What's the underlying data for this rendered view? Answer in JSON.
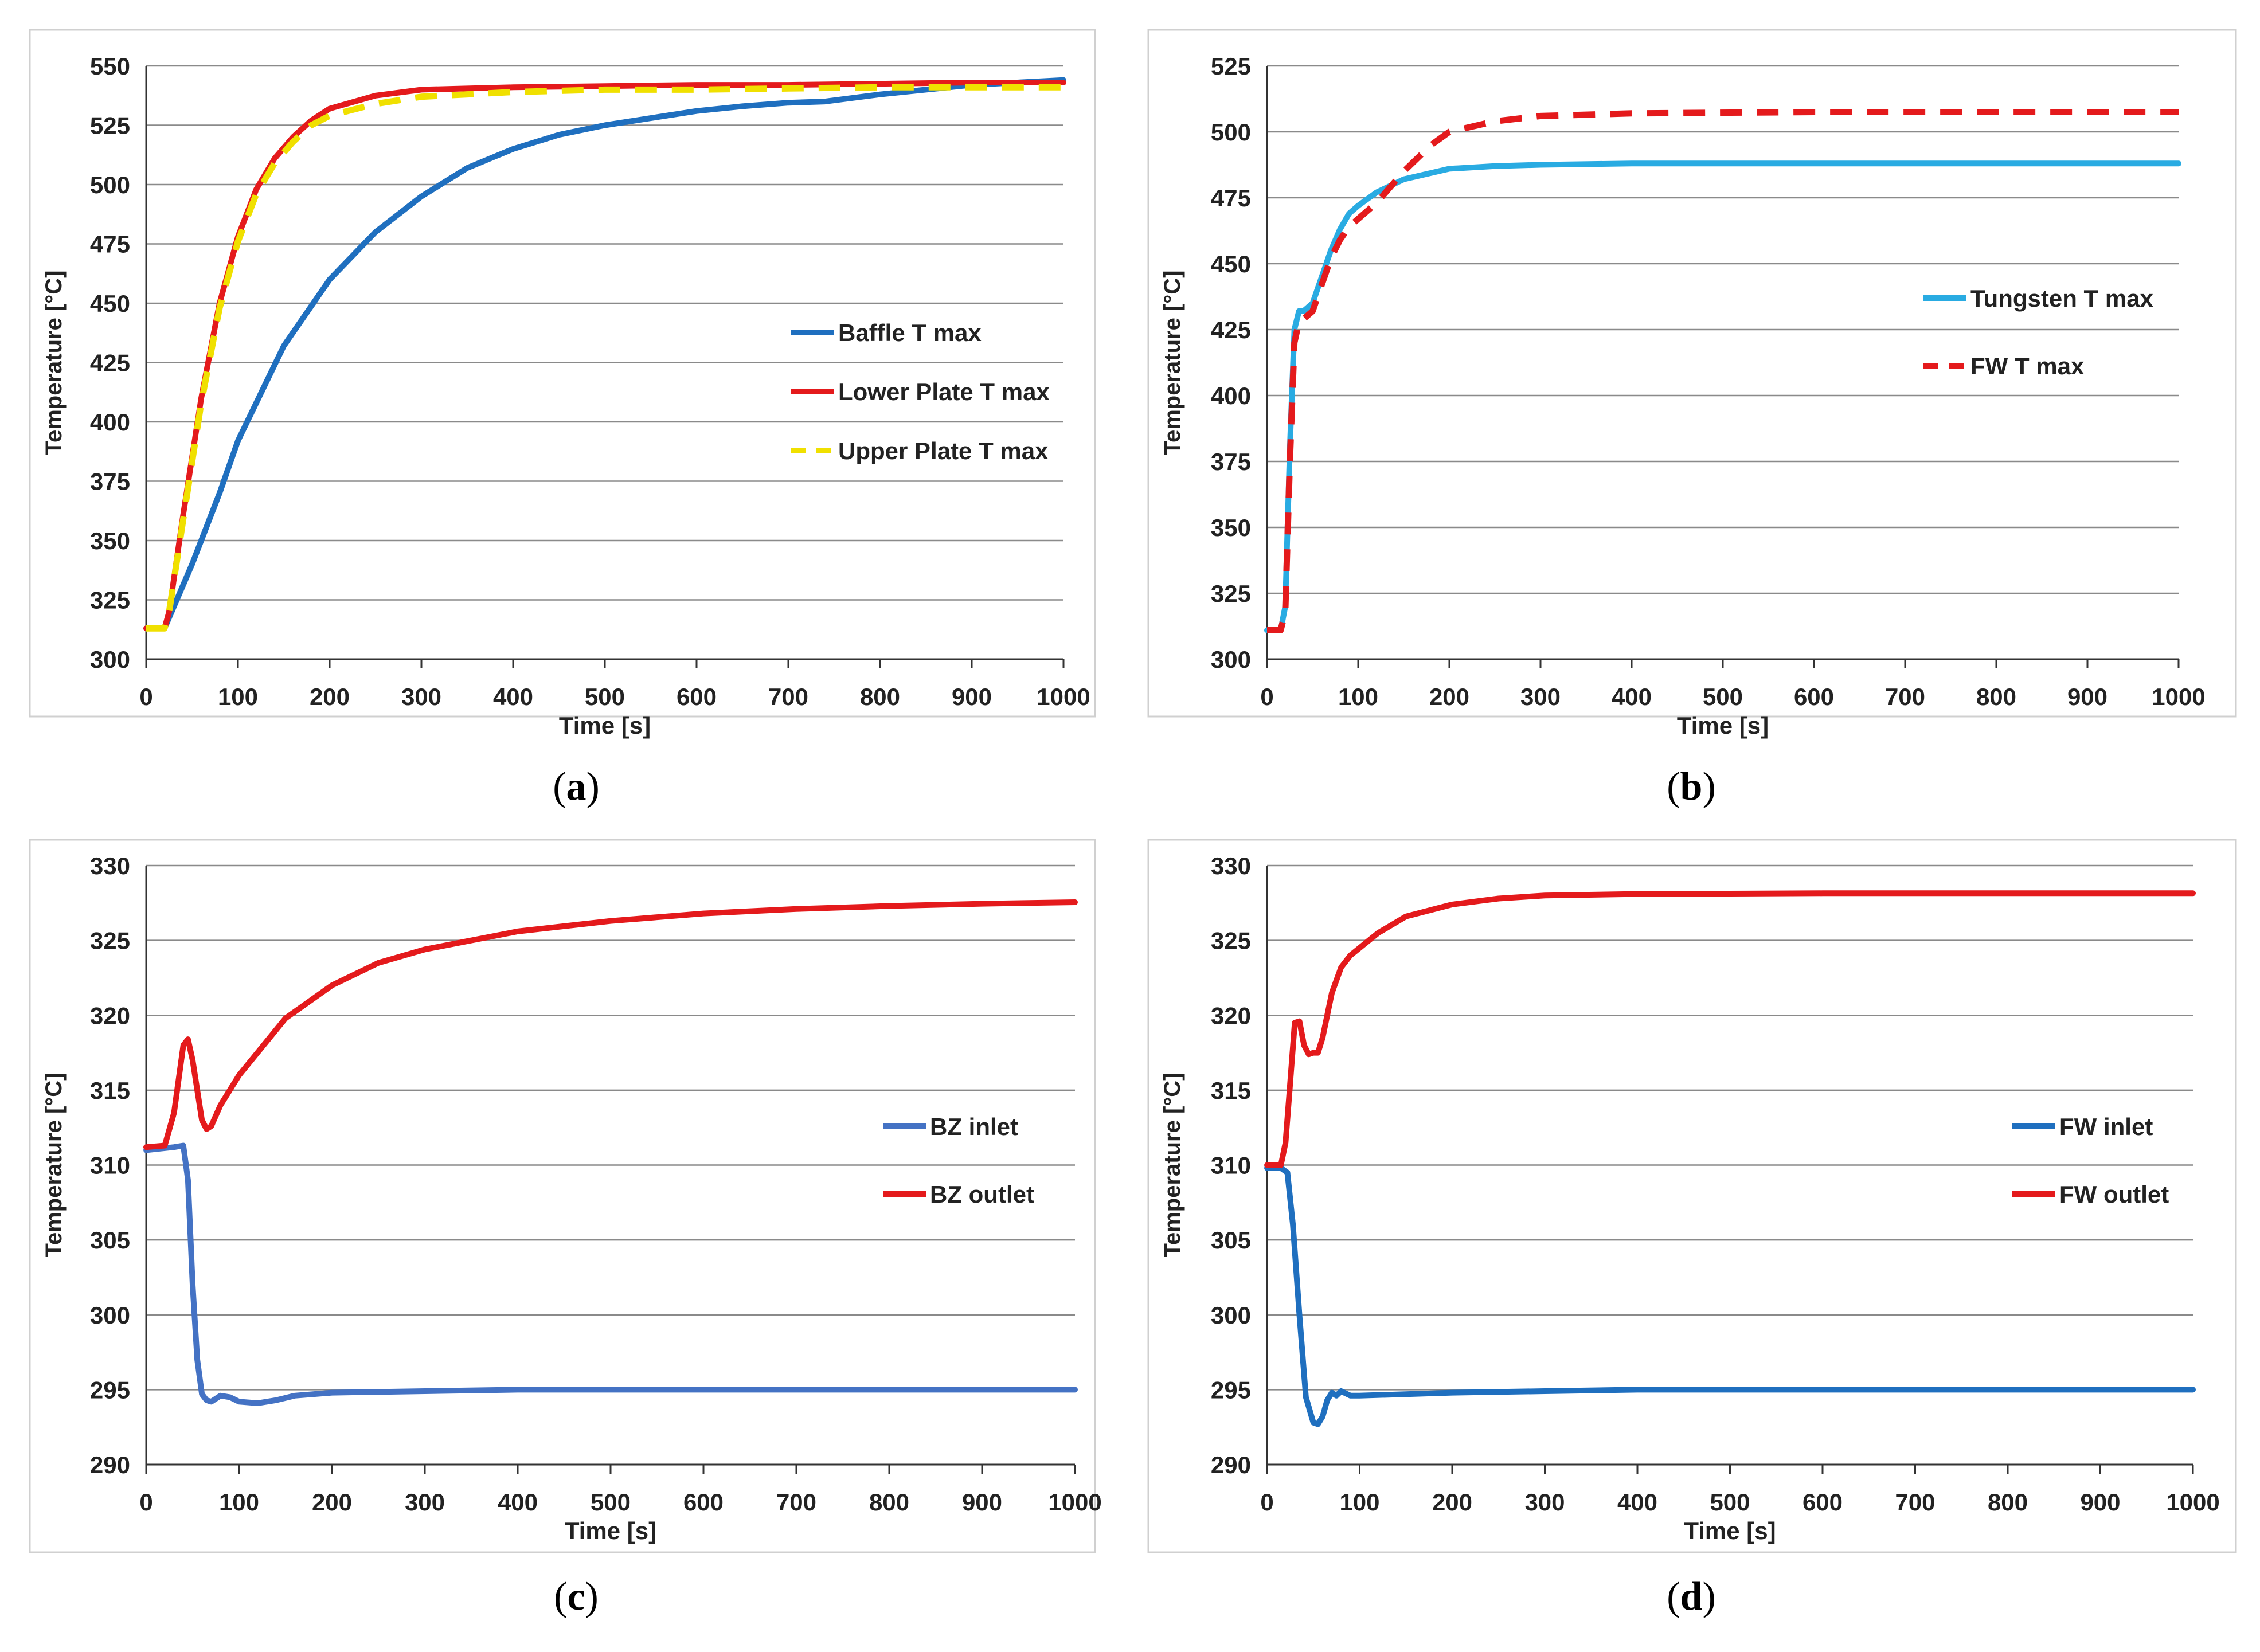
{
  "chart_data": [
    {
      "panel": "a",
      "label": "(a)",
      "type": "line",
      "xlabel": "Time [s]",
      "ylabel": "Temperature [°C]",
      "xlim": [
        0,
        1000
      ],
      "ylim": [
        300,
        550
      ],
      "xticks": [
        0,
        100,
        200,
        300,
        400,
        500,
        600,
        700,
        800,
        900,
        1000
      ],
      "yticks": [
        300,
        325,
        350,
        375,
        400,
        425,
        450,
        475,
        500,
        525,
        550
      ],
      "grid": "horizontal",
      "legend": "right-middle",
      "series": [
        {
          "name": "Baffle T max",
          "color": "#1f6fbf",
          "dash": "solid",
          "x": [
            0,
            20,
            30,
            50,
            80,
            100,
            150,
            200,
            250,
            300,
            350,
            400,
            450,
            500,
            550,
            600,
            650,
            700,
            740,
            800,
            900,
            1000
          ],
          "y": [
            313,
            313,
            322,
            340,
            370,
            392,
            432,
            460,
            480,
            495,
            507,
            515,
            521,
            525,
            528,
            531,
            533,
            534.5,
            535,
            538,
            542,
            544
          ]
        },
        {
          "name": "Lower Plate T max",
          "color": "#e41a1c",
          "dash": "solid",
          "x": [
            0,
            20,
            25,
            40,
            60,
            80,
            100,
            120,
            140,
            160,
            180,
            200,
            250,
            300,
            400,
            500,
            600,
            700,
            800,
            900,
            1000
          ],
          "y": [
            313,
            313,
            320,
            360,
            410,
            450,
            478,
            498,
            511,
            520,
            527,
            532,
            537.5,
            540,
            541,
            541.5,
            542,
            542,
            542.5,
            543,
            543
          ]
        },
        {
          "name": "Upper Plate T max",
          "color": "#f0e000",
          "dash": "dashed",
          "x": [
            0,
            20,
            25,
            40,
            60,
            80,
            100,
            120,
            140,
            160,
            180,
            200,
            250,
            300,
            400,
            500,
            600,
            700,
            800,
            900,
            1000
          ],
          "y": [
            313,
            313,
            320,
            358,
            408,
            448,
            476,
            496,
            509,
            518,
            525,
            529,
            534,
            537,
            539,
            540,
            540,
            540.5,
            541,
            541,
            541
          ]
        }
      ]
    },
    {
      "panel": "b",
      "label": "(b)",
      "type": "line",
      "xlabel": "Time [s]",
      "ylabel": "Temperature [°C]",
      "xlim": [
        0,
        1000
      ],
      "ylim": [
        300,
        525
      ],
      "xticks": [
        0,
        100,
        200,
        300,
        400,
        500,
        600,
        700,
        800,
        900,
        1000
      ],
      "yticks": [
        300,
        325,
        350,
        375,
        400,
        425,
        450,
        475,
        500,
        525
      ],
      "grid": "horizontal",
      "legend": "right-middle",
      "series": [
        {
          "name": "Tungsten T max",
          "color": "#29abe2",
          "dash": "solid",
          "x": [
            0,
            15,
            20,
            25,
            30,
            35,
            40,
            50,
            60,
            70,
            80,
            90,
            100,
            120,
            150,
            200,
            250,
            300,
            400,
            600,
            800,
            1000
          ],
          "y": [
            311,
            311,
            320,
            380,
            425,
            432,
            432,
            435,
            445,
            455,
            463,
            469,
            472,
            477,
            482,
            486,
            487,
            487.5,
            488,
            488,
            488,
            488
          ]
        },
        {
          "name": "FW T max",
          "color": "#e41a1c",
          "dash": "dashed",
          "x": [
            0,
            15,
            20,
            25,
            30,
            35,
            40,
            50,
            60,
            70,
            80,
            90,
            100,
            120,
            150,
            180,
            200,
            250,
            300,
            400,
            600,
            800,
            1000
          ],
          "y": [
            311,
            311,
            318,
            375,
            420,
            428,
            429,
            432,
            442,
            452,
            459,
            464,
            467,
            473,
            485,
            495,
            500,
            504,
            506,
            507,
            507.5,
            507.5,
            507.5
          ]
        }
      ]
    },
    {
      "panel": "c",
      "label": "(c)",
      "type": "line",
      "xlabel": "Time [s]",
      "ylabel": "Temperature [°C]",
      "xlim": [
        0,
        1000
      ],
      "ylim": [
        290,
        330
      ],
      "xticks": [
        0,
        100,
        200,
        300,
        400,
        500,
        600,
        700,
        800,
        900,
        1000
      ],
      "yticks": [
        290,
        295,
        300,
        305,
        310,
        315,
        320,
        325,
        330
      ],
      "grid": "horizontal",
      "legend": "right-middle",
      "series": [
        {
          "name": "BZ inlet",
          "color": "#4472c4",
          "dash": "solid",
          "x": [
            0,
            30,
            40,
            45,
            50,
            55,
            60,
            65,
            70,
            80,
            90,
            100,
            120,
            140,
            160,
            200,
            300,
            400,
            600,
            800,
            1000
          ],
          "y": [
            311,
            311.2,
            311.3,
            309,
            302,
            297,
            294.7,
            294.3,
            294.2,
            294.6,
            294.5,
            294.2,
            294.1,
            294.3,
            294.6,
            294.8,
            294.9,
            295,
            295,
            295,
            295
          ]
        },
        {
          "name": "BZ outlet",
          "color": "#e41a1c",
          "dash": "solid",
          "x": [
            0,
            20,
            30,
            40,
            45,
            50,
            60,
            65,
            70,
            80,
            90,
            100,
            150,
            200,
            250,
            300,
            400,
            500,
            600,
            700,
            800,
            900,
            1000
          ],
          "y": [
            311.2,
            311.3,
            313.5,
            318,
            318.4,
            317,
            313,
            312.4,
            312.6,
            314,
            315,
            316,
            319.8,
            322,
            323.5,
            324.4,
            325.6,
            326.3,
            326.8,
            327.1,
            327.3,
            327.45,
            327.55
          ]
        }
      ]
    },
    {
      "panel": "d",
      "label": "(d)",
      "type": "line",
      "xlabel": "Time [s]",
      "ylabel": "Temperature [°C]",
      "xlim": [
        0,
        1000
      ],
      "ylim": [
        290,
        330
      ],
      "xticks": [
        0,
        100,
        200,
        300,
        400,
        500,
        600,
        700,
        800,
        900,
        1000
      ],
      "yticks": [
        290,
        295,
        300,
        305,
        310,
        315,
        320,
        325,
        330
      ],
      "grid": "horizontal",
      "legend": "right-middle",
      "series": [
        {
          "name": "FW inlet",
          "color": "#1f6fbf",
          "dash": "solid",
          "x": [
            0,
            15,
            22,
            28,
            35,
            42,
            50,
            55,
            60,
            65,
            70,
            75,
            80,
            90,
            100,
            150,
            200,
            300,
            400,
            600,
            800,
            1000
          ],
          "y": [
            309.8,
            309.8,
            309.5,
            306,
            300,
            294.5,
            292.8,
            292.7,
            293.2,
            294.3,
            294.8,
            294.6,
            294.9,
            294.6,
            294.6,
            294.7,
            294.8,
            294.9,
            295,
            295,
            295,
            295
          ]
        },
        {
          "name": "FW outlet",
          "color": "#e41a1c",
          "dash": "solid",
          "x": [
            0,
            15,
            20,
            25,
            30,
            35,
            40,
            45,
            50,
            55,
            60,
            70,
            80,
            90,
            100,
            120,
            150,
            200,
            250,
            300,
            400,
            600,
            800,
            1000
          ],
          "y": [
            310,
            310,
            311.5,
            315.5,
            319.5,
            319.6,
            318,
            317.4,
            317.5,
            317.5,
            318.5,
            321.5,
            323.2,
            324,
            324.5,
            325.5,
            326.6,
            327.4,
            327.8,
            328,
            328.1,
            328.15,
            328.15,
            328.15
          ]
        }
      ]
    }
  ]
}
